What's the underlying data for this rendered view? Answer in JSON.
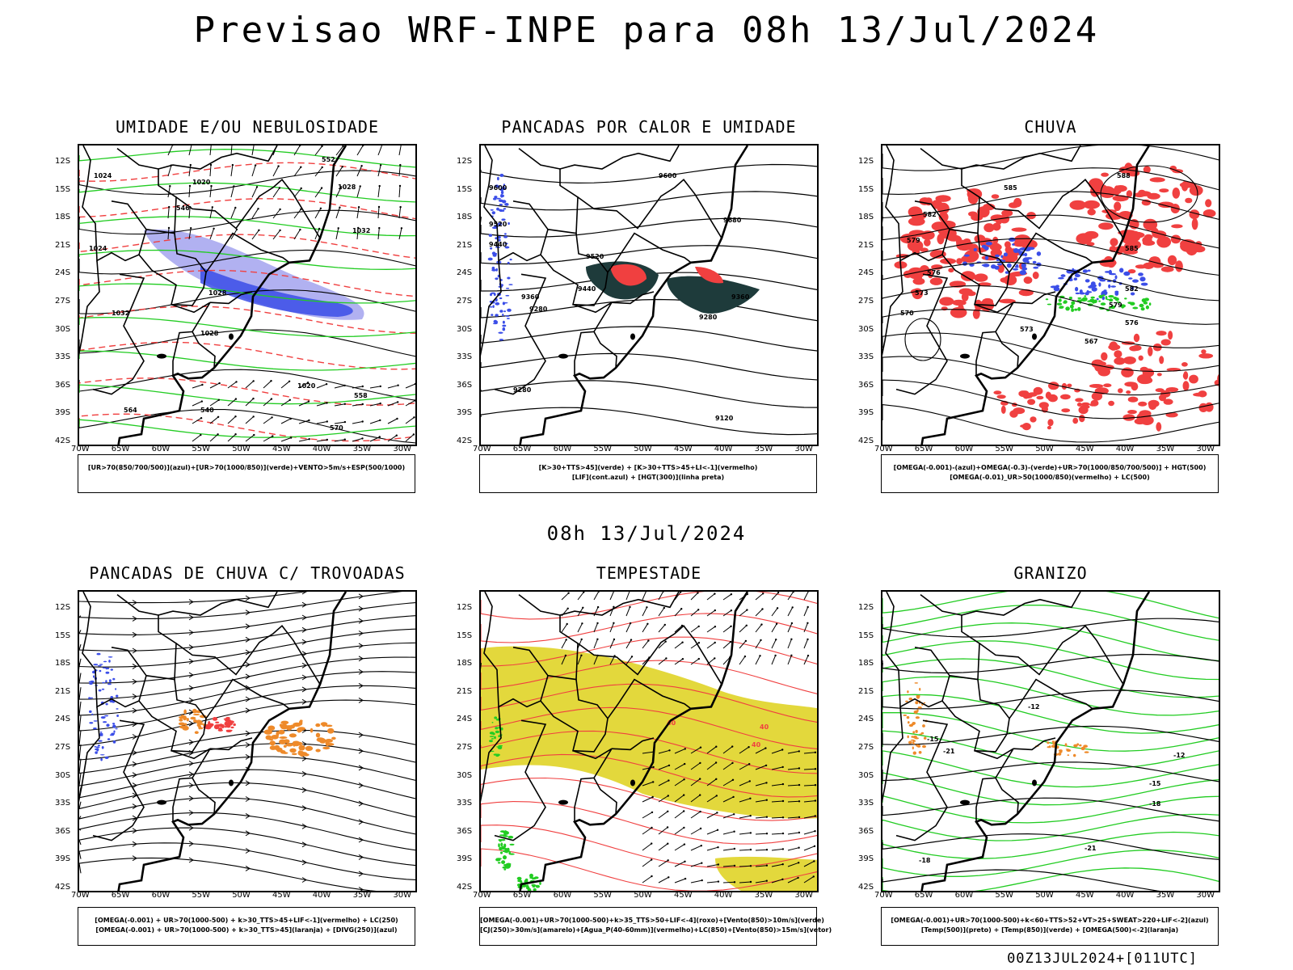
{
  "header": {
    "title": "Previsao WRF-INPE  para 08h 13/Jul/2024"
  },
  "mid_title": "08h 13/Jul/2024",
  "footer": "00Z13JUL2024+[011UTC]",
  "axes": {
    "lat_labels": [
      "12S",
      "15S",
      "18S",
      "21S",
      "24S",
      "27S",
      "30S",
      "33S",
      "36S",
      "39S",
      "42S"
    ],
    "lon_labels": [
      "70W",
      "65W",
      "60W",
      "55W",
      "50W",
      "45W",
      "40W",
      "35W",
      "30W"
    ]
  },
  "colors": {
    "blue": "#3b4ee8",
    "green": "#22cc22",
    "red": "#f04040",
    "yellow": "#e3d83c",
    "orange": "#ee8a2a",
    "darkteal": "#1e3b3b",
    "lavender": "#a8a8f0"
  },
  "panels": [
    {
      "title": "UMIDADE E/OU NEBULOSIDADE",
      "legend": [
        "[UR>70(850/700/500)](azul)+[UR>70(1000/850)](verde)+VENTO>5m/s+ESP(500/1000)"
      ],
      "contour_labels": [
        "1024",
        "1020",
        "1028",
        "1032",
        "1024",
        "1028",
        "1032",
        "1028",
        "1020",
        "564",
        "570",
        "558",
        "552",
        "546",
        "540"
      ]
    },
    {
      "title": "PANCADAS POR CALOR E UMIDADE",
      "legend": [
        "[K>30+TTS>45](verde) + [K>30+TTS>45+LI<-1](vermelho)",
        "[LIF](cont.azul) + [HGT(300)](linha preta)"
      ],
      "contour_labels": [
        "9600",
        "9520",
        "9440",
        "9360",
        "9280",
        "9280",
        "9600",
        "9680",
        "9520",
        "9440",
        "9360",
        "9280",
        "9120"
      ]
    },
    {
      "title": "CHUVA",
      "legend": [
        "[OMEGA(-0.001)-(azul)+OMEGA(-0.3)-(verde)+UR>70(1000/850/700/500)] + HGT(500)",
        "[OMEGA(-0.01)_UR>50(1000/850)(vermelho) + LC(500)"
      ],
      "contour_labels": [
        "588",
        "585",
        "582",
        "579",
        "576",
        "573",
        "570",
        "567",
        "573",
        "576",
        "579",
        "582",
        "585"
      ]
    },
    {
      "title": "PANCADAS DE CHUVA C/ TROVOADAS",
      "legend": [
        "[OMEGA(-0.001) + UR>70(1000-500) + k>30_TTS>45+LIF<-1](vermelho) + LC(250)",
        "[OMEGA(-0.001) + UR>70(1000-500) + k>30_TTS>45](laranja) + [DIVG(250)](azul)"
      ],
      "contour_labels": []
    },
    {
      "title": "TEMPESTADE",
      "legend": [
        "[OMEGA(-0.001)+UR>70(1000-500)+k>35_TTS>50+LIF<-4](roxo)+[Vento(850)>10m/s](verde)",
        "[CJ(250)>30m/s](amarelo)+[Agua_P(40-60mm)](vermelho)+LC(850)+[Vento(850)>15m/s](vetor)"
      ],
      "contour_labels": [
        "40",
        "40",
        "40"
      ]
    },
    {
      "title": "GRANIZO",
      "legend": [
        "[OMEGA(-0.001)+UR>70(1000-500)+k<60+TTS>52+VT>25+SWEAT>220+LIF<-2](azul)",
        "[Temp(500)](preto) + [Temp(850)](verde) + [OMEGA(500)<-2](laranja)"
      ],
      "contour_labels": [
        "-12",
        "-15",
        "-12",
        "-15",
        "-18",
        "-21",
        "-21",
        "-18"
      ]
    }
  ]
}
